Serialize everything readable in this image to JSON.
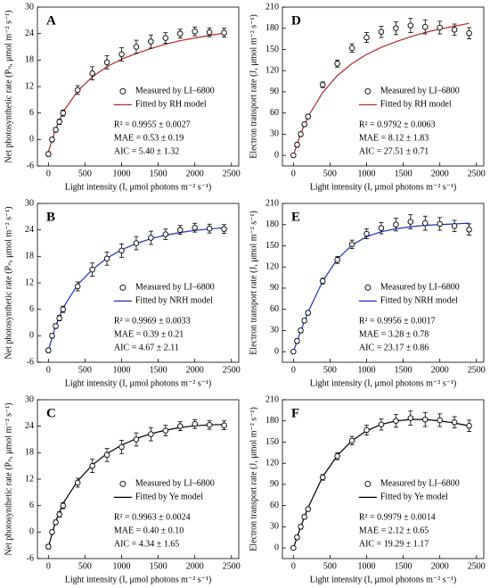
{
  "chart_data": [
    {
      "type": "scatter",
      "label": "A",
      "xlabel": "Light intensity (I, μmol photons m⁻² s⁻¹)",
      "ylabel": "Net photosynthetic rate (Pₙ, μmol m⁻² s⁻¹)",
      "xlim": [
        -150,
        2600
      ],
      "ylim": [
        -6,
        30
      ],
      "xticks": [
        0,
        500,
        1000,
        1500,
        2000,
        2500
      ],
      "yticks": [
        -6,
        0,
        6,
        12,
        18,
        24,
        30
      ],
      "x": [
        0,
        50,
        100,
        150,
        200,
        400,
        600,
        800,
        1000,
        1200,
        1400,
        1600,
        1800,
        2000,
        2200,
        2400
      ],
      "series": [
        {
          "name": "Measured by LI–6800",
          "color": "#000000",
          "values": [
            -3.3,
            0,
            2.2,
            4,
            6,
            11.2,
            15,
            17.5,
            19.3,
            21,
            22.2,
            23,
            24,
            24.5,
            24.3,
            24.2
          ],
          "errors": [
            0.5,
            0.5,
            0.5,
            0.6,
            0.7,
            1,
            1.5,
            1.5,
            1.5,
            1.5,
            1.5,
            1.2,
            1,
            1,
            1,
            1
          ]
        },
        {
          "name": "Fitted by RH model",
          "color": "#b02a2a",
          "x": [
            0,
            100,
            200,
            400,
            600,
            800,
            1000,
            1200,
            1400,
            1600,
            1800,
            2000,
            2200,
            2400
          ],
          "values": [
            -2.8,
            2.5,
            6.2,
            11,
            14.2,
            16.5,
            18.2,
            19.5,
            20.6,
            21.6,
            22.4,
            23,
            23.6,
            24.1
          ]
        }
      ],
      "stats": [
        "R² = 0.9955 ± 0.0027",
        "MAE = 0.53 ± 0.19",
        "AIC = 5.40 ± 1.32"
      ]
    },
    {
      "type": "scatter",
      "label": "D",
      "xlabel": "Light intensity (I, μmol photons m⁻² s⁻¹)",
      "ylabel": "Electron transport rate (J, μmol m⁻² s⁻¹)",
      "xlim": [
        -150,
        2600
      ],
      "ylim": [
        -15,
        210
      ],
      "xticks": [
        0,
        500,
        1000,
        1500,
        2000,
        2500
      ],
      "yticks": [
        0,
        30,
        60,
        90,
        120,
        150,
        180,
        210
      ],
      "x": [
        0,
        50,
        100,
        150,
        200,
        400,
        600,
        800,
        1000,
        1200,
        1400,
        1600,
        1800,
        2000,
        2200,
        2400
      ],
      "series": [
        {
          "name": "Measured by LI–6800",
          "color": "#000000",
          "values": [
            0,
            15,
            30,
            44,
            55,
            100,
            130,
            152,
            167,
            175,
            180,
            184,
            182,
            181,
            178,
            173
          ],
          "errors": [
            2,
            3,
            3,
            3,
            3,
            4,
            5,
            6,
            7,
            8,
            9,
            10,
            10,
            9,
            8,
            8
          ]
        },
        {
          "name": "Fitted by RH model",
          "color": "#b02a2a",
          "x": [
            0,
            100,
            200,
            400,
            600,
            800,
            1000,
            1200,
            1400,
            1600,
            1800,
            2000,
            2200,
            2400
          ],
          "values": [
            0,
            31,
            55,
            89,
            113,
            130,
            143,
            153,
            161,
            168,
            174,
            179,
            183,
            187
          ]
        }
      ],
      "stats": [
        "R² = 0.9792 ± 0.0063",
        "MAE = 8.12 ± 1.83",
        "AIC = 27.51 ± 0.71"
      ]
    },
    {
      "type": "scatter",
      "label": "B",
      "xlabel": "Light intensity (I, μmol photons m⁻² s⁻¹)",
      "ylabel": "Net photosynthetic rate (Pₙ, μmol m⁻² s⁻¹)",
      "xlim": [
        -150,
        2600
      ],
      "ylim": [
        -6,
        30
      ],
      "xticks": [
        0,
        500,
        1000,
        1500,
        2000,
        2500
      ],
      "yticks": [
        -6,
        0,
        6,
        12,
        18,
        24,
        30
      ],
      "x": [
        0,
        50,
        100,
        150,
        200,
        400,
        600,
        800,
        1000,
        1200,
        1400,
        1600,
        1800,
        2000,
        2200,
        2400
      ],
      "series": [
        {
          "name": "Measured by LI–6800",
          "color": "#000000",
          "values": [
            -3.3,
            0,
            2.2,
            4,
            6,
            11.2,
            15,
            17.5,
            19.3,
            21,
            22.2,
            23,
            24,
            24.5,
            24.3,
            24.2
          ],
          "errors": [
            0.5,
            0.5,
            0.5,
            0.6,
            0.7,
            1,
            1.5,
            1.5,
            1.5,
            1.5,
            1.5,
            1.2,
            1,
            1,
            1,
            1
          ]
        },
        {
          "name": "Fitted by NRH model",
          "color": "#1f2fbf",
          "x": [
            0,
            100,
            200,
            400,
            600,
            800,
            1000,
            1200,
            1400,
            1600,
            1800,
            2000,
            2200,
            2400
          ],
          "values": [
            -3.3,
            2.3,
            6.3,
            11.6,
            15,
            17.6,
            19.5,
            20.9,
            22,
            22.8,
            23.4,
            23.9,
            24.2,
            24.5
          ]
        }
      ],
      "stats": [
        "R² = 0.9969 ± 0.0033",
        "MAE = 0.39 ± 0.21",
        "AIC = 4.67 ± 2.11"
      ]
    },
    {
      "type": "scatter",
      "label": "E",
      "xlabel": "Light intensity (I, μmol photons m⁻² s⁻¹)",
      "ylabel": "Electron transport rate (J, μmol m⁻² s⁻¹)",
      "xlim": [
        -150,
        2600
      ],
      "ylim": [
        -15,
        210
      ],
      "xticks": [
        0,
        500,
        1000,
        1500,
        2000,
        2500
      ],
      "yticks": [
        0,
        30,
        60,
        90,
        120,
        150,
        180,
        210
      ],
      "x": [
        0,
        50,
        100,
        150,
        200,
        400,
        600,
        800,
        1000,
        1200,
        1400,
        1600,
        1800,
        2000,
        2200,
        2400
      ],
      "series": [
        {
          "name": "Measured by LI–6800",
          "color": "#000000",
          "values": [
            0,
            15,
            30,
            44,
            55,
            100,
            130,
            152,
            167,
            175,
            180,
            184,
            182,
            181,
            178,
            173
          ],
          "errors": [
            2,
            3,
            3,
            3,
            3,
            4,
            5,
            6,
            7,
            8,
            9,
            10,
            10,
            9,
            8,
            8
          ]
        },
        {
          "name": "Fitted by NRH model",
          "color": "#1f2fbf",
          "x": [
            0,
            100,
            200,
            400,
            600,
            800,
            1000,
            1200,
            1400,
            1600,
            1800,
            2000,
            2200,
            2400
          ],
          "values": [
            0,
            29,
            56,
            100,
            131,
            151,
            163,
            170,
            174,
            177,
            179,
            180,
            181,
            182
          ]
        }
      ],
      "stats": [
        "R² = 0.9956 ± 0.0017",
        "MAE = 3.28 ± 0.78",
        "AIC = 23.17 ± 0.86"
      ]
    },
    {
      "type": "scatter",
      "label": "C",
      "xlabel": "Light intensity (I, μmol photons m⁻² s⁻¹)",
      "ylabel": "Net photosynthetic rate (Pₙ, μmol m⁻² s⁻¹)",
      "xlim": [
        -150,
        2600
      ],
      "ylim": [
        -6,
        30
      ],
      "xticks": [
        0,
        500,
        1000,
        1500,
        2000,
        2500
      ],
      "yticks": [
        -6,
        0,
        6,
        12,
        18,
        24,
        30
      ],
      "x": [
        0,
        50,
        100,
        150,
        200,
        400,
        600,
        800,
        1000,
        1200,
        1400,
        1600,
        1800,
        2000,
        2200,
        2400
      ],
      "series": [
        {
          "name": "Measured by LI–6800",
          "color": "#000000",
          "values": [
            -3.3,
            0,
            2.2,
            4,
            6,
            11.2,
            15,
            17.5,
            19.3,
            21,
            22.2,
            23,
            24,
            24.5,
            24.3,
            24.2
          ],
          "errors": [
            0.5,
            0.5,
            0.5,
            0.6,
            0.7,
            1,
            1.5,
            1.5,
            1.5,
            1.5,
            1.5,
            1.2,
            1,
            1,
            1,
            1
          ]
        },
        {
          "name": "Fitted by Ye model",
          "color": "#000000",
          "x": [
            0,
            100,
            200,
            400,
            600,
            800,
            1000,
            1200,
            1400,
            1600,
            1800,
            2000,
            2200,
            2400
          ],
          "values": [
            -3.3,
            2.5,
            6.5,
            11.6,
            15.2,
            17.8,
            19.7,
            21.2,
            22.3,
            23.1,
            23.7,
            24.1,
            24.3,
            24.4
          ]
        }
      ],
      "stats": [
        "R² = 0.9963 ± 0.0024",
        "MAE = 0.40 ± 0.10",
        "AIC = 4.34 ± 1.65"
      ]
    },
    {
      "type": "scatter",
      "label": "F",
      "xlabel": "Light intensity (I, μmol photons m⁻² s⁻¹)",
      "ylabel": "Electron transport rate (J, μmol m⁻² s⁻¹)",
      "xlim": [
        -150,
        2600
      ],
      "ylim": [
        -15,
        210
      ],
      "xticks": [
        0,
        500,
        1000,
        1500,
        2000,
        2500
      ],
      "yticks": [
        0,
        30,
        60,
        90,
        120,
        150,
        180,
        210
      ],
      "x": [
        0,
        50,
        100,
        150,
        200,
        400,
        600,
        800,
        1000,
        1200,
        1400,
        1600,
        1800,
        2000,
        2200,
        2400
      ],
      "series": [
        {
          "name": "Measured by LI–6800",
          "color": "#000000",
          "values": [
            0,
            15,
            30,
            44,
            55,
            100,
            130,
            152,
            167,
            175,
            180,
            184,
            182,
            181,
            178,
            173
          ],
          "errors": [
            2,
            3,
            3,
            3,
            3,
            4,
            5,
            6,
            7,
            8,
            9,
            10,
            10,
            9,
            8,
            8
          ]
        },
        {
          "name": "Fitted by Ye model",
          "color": "#000000",
          "x": [
            0,
            100,
            200,
            400,
            600,
            800,
            1000,
            1200,
            1400,
            1600,
            1800,
            2000,
            2200,
            2400
          ],
          "values": [
            0,
            30,
            57,
            101,
            131,
            152,
            166,
            175,
            180,
            182,
            182,
            180,
            177,
            173
          ]
        }
      ],
      "stats": [
        "R² = 0.9979 ± 0.0014",
        "MAE = 2.12 ± 0.65",
        "AIC = 19.29 ± 1.17"
      ]
    }
  ]
}
